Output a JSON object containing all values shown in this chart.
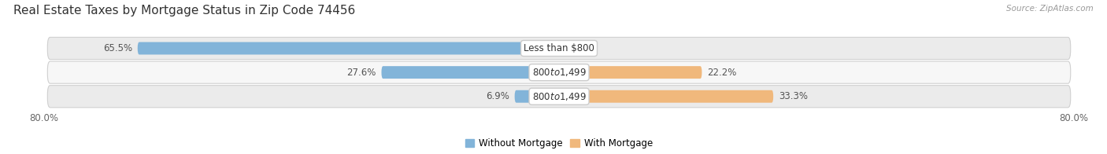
{
  "title": "Real Estate Taxes by Mortgage Status in Zip Code 74456",
  "source": "Source: ZipAtlas.com",
  "rows": [
    {
      "label": "Less than $800",
      "without_mortgage_pct": 65.5,
      "with_mortgage_pct": 0.0
    },
    {
      "label": "$800 to $1,499",
      "without_mortgage_pct": 27.6,
      "with_mortgage_pct": 22.2
    },
    {
      "label": "$800 to $1,499",
      "without_mortgage_pct": 6.9,
      "with_mortgage_pct": 33.3
    }
  ],
  "axis_min": -80.0,
  "axis_max": 80.0,
  "axis_left_label": "80.0%",
  "axis_right_label": "80.0%",
  "color_without": "#82B4D9",
  "color_with": "#F0B87C",
  "color_row_bg_odd": "#EBEBEB",
  "color_row_bg_even": "#F7F7F7",
  "fig_bg": "#FFFFFF",
  "bar_height": 0.52,
  "title_fontsize": 11,
  "label_fontsize": 8.5,
  "pct_fontsize": 8.5,
  "tick_fontsize": 8.5,
  "legend_fontsize": 8.5
}
